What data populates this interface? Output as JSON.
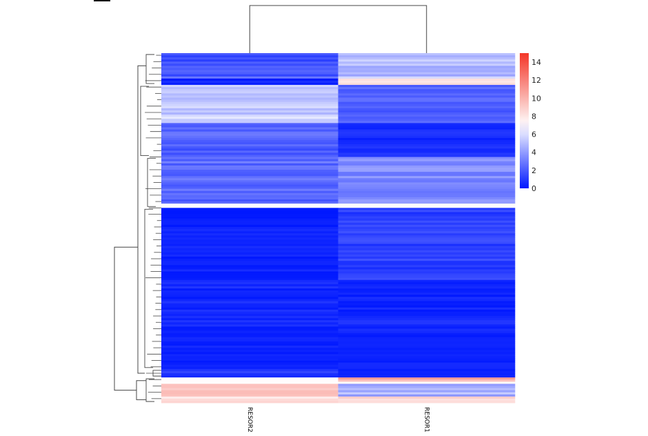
{
  "chart_data": {
    "type": "heatmap",
    "title": "",
    "xlabel": "",
    "ylabel": "",
    "columns": [
      "RESOR2",
      "RESOR1"
    ],
    "color_scale": {
      "min": 0,
      "mid": 7,
      "max": 15,
      "low_color": "#0018ff",
      "mid_color": "#ffffff",
      "high_color": "#f43628"
    },
    "legend": {
      "placement": "right",
      "ticks": [
        "14",
        "12",
        "10",
        "8",
        "6",
        "4",
        "2",
        "0"
      ]
    },
    "row_dendrogram": true,
    "column_dendrogram": true,
    "row_blocks": [
      {
        "rows": 12,
        "values": [
          2.0,
          5.0
        ],
        "var": [
          1.0,
          0.9
        ]
      },
      {
        "rows": 3,
        "values": [
          0.3,
          8.3
        ],
        "var": [
          0.4,
          0.6
        ]
      },
      {
        "rows": 18,
        "values": [
          5.5,
          2.2
        ],
        "var": [
          0.9,
          0.6
        ]
      },
      {
        "rows": 16,
        "values": [
          2.3,
          0.6
        ],
        "var": [
          0.8,
          0.4
        ]
      },
      {
        "rows": 22,
        "values": [
          2.6,
          3.6
        ],
        "var": [
          0.8,
          0.8
        ]
      },
      {
        "rows": 2,
        "values": [
          7.0,
          7.0
        ],
        "var": [
          0.2,
          0.2
        ]
      },
      {
        "rows": 34,
        "values": [
          0.3,
          1.2
        ],
        "var": [
          0.4,
          0.6
        ]
      },
      {
        "rows": 24,
        "values": [
          0.5,
          0.5
        ],
        "var": [
          0.5,
          0.5
        ]
      },
      {
        "rows": 18,
        "values": [
          0.3,
          0.3
        ],
        "var": [
          0.3,
          0.3
        ]
      },
      {
        "rows": 4,
        "values": [
          1.0,
          0.5
        ],
        "var": [
          0.5,
          0.4
        ]
      },
      {
        "rows": 3,
        "values": [
          7.0,
          9.0
        ],
        "var": [
          0.2,
          2.0
        ]
      },
      {
        "rows": 6,
        "values": [
          9.5,
          5.0
        ],
        "var": [
          1.0,
          1.5
        ]
      },
      {
        "rows": 3,
        "values": [
          8.5,
          9.0
        ],
        "var": [
          0.8,
          0.8
        ]
      }
    ]
  }
}
